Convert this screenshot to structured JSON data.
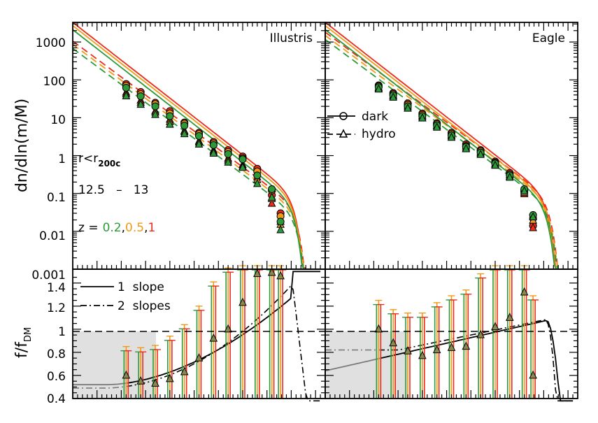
{
  "chart_data": [
    {
      "panel": "top-left",
      "type": "line",
      "label": "Illustris",
      "ylabel": "dn/dln(m/M)",
      "yscale": "log",
      "ylim": [
        0.001,
        3000
      ],
      "ytick_labels": [
        "1000",
        "100",
        "10",
        "1",
        "0.1",
        "0.01",
        "0.001"
      ],
      "xlim": [
        -5.0,
        0.2
      ],
      "annotations": {
        "radius": "r<r",
        "radius_sub": "200c",
        "mass_bin": "12.5   –   13",
        "z_prefix": "z =",
        "z1": "0.2",
        "z2": "0.5",
        "z3": "1"
      },
      "series": [
        {
          "z": "1",
          "color": "#ee2a1a",
          "points_dark": [
            [
              -3.9,
              78
            ],
            [
              -3.6,
              48
            ],
            [
              -3.3,
              25
            ],
            [
              -3.0,
              15
            ],
            [
              -2.7,
              7.5
            ],
            [
              -2.4,
              4.0
            ],
            [
              -2.1,
              2.3
            ],
            [
              -1.8,
              1.4
            ],
            [
              -1.5,
              0.95
            ],
            [
              -1.2,
              0.45
            ],
            [
              -0.9,
              0.09
            ],
            [
              -0.72,
              0.03
            ]
          ]
        },
        {
          "z": "0.5",
          "color": "#f19a16",
          "points_dark": [
            [
              -3.9,
              70
            ],
            [
              -3.6,
              42
            ],
            [
              -3.3,
              23
            ],
            [
              -3.0,
              13
            ],
            [
              -2.7,
              7.0
            ],
            [
              -2.4,
              3.7
            ],
            [
              -2.1,
              2.1
            ],
            [
              -1.8,
              1.25
            ],
            [
              -1.5,
              0.85
            ],
            [
              -1.2,
              0.38
            ],
            [
              -0.9,
              0.12
            ],
            [
              -0.72,
              0.025
            ]
          ]
        },
        {
          "z": "0.2",
          "color": "#2d9a3a",
          "points_dark": [
            [
              -3.9,
              62
            ],
            [
              -3.6,
              37
            ],
            [
              -3.3,
              20
            ],
            [
              -3.0,
              11
            ],
            [
              -2.7,
              6.2
            ],
            [
              -2.4,
              3.3
            ],
            [
              -2.1,
              1.9
            ],
            [
              -1.8,
              1.1
            ],
            [
              -1.5,
              0.8
            ],
            [
              -1.2,
              0.3
            ],
            [
              -0.9,
              0.13
            ],
            [
              -0.72,
              0.018
            ]
          ]
        }
      ]
    },
    {
      "panel": "top-right",
      "type": "line",
      "label": "Eagle",
      "legend": {
        "dark": "dark",
        "hydro": "hydro"
      },
      "series": [
        {
          "z": "1",
          "color": "#ee2a1a",
          "points_dark": [
            [
              -3.9,
              72
            ],
            [
              -3.6,
              45
            ],
            [
              -3.3,
              24
            ],
            [
              -3.0,
              13
            ],
            [
              -2.7,
              7.2
            ],
            [
              -2.4,
              4.0
            ],
            [
              -2.1,
              2.0
            ],
            [
              -1.8,
              1.4
            ],
            [
              -1.5,
              0.7
            ],
            [
              -1.2,
              0.35
            ],
            [
              -0.9,
              0.11
            ],
            [
              -0.72,
              0.014
            ]
          ]
        },
        {
          "z": "0.5",
          "color": "#f19a16",
          "points_dark": [
            [
              -3.9,
              68
            ],
            [
              -3.6,
              42
            ],
            [
              -3.3,
              22
            ],
            [
              -3.0,
              12
            ],
            [
              -2.7,
              6.8
            ],
            [
              -2.4,
              3.7
            ],
            [
              -2.1,
              1.8
            ],
            [
              -1.8,
              1.3
            ],
            [
              -1.5,
              0.65
            ],
            [
              -1.2,
              0.32
            ],
            [
              -0.9,
              0.12
            ],
            [
              -0.72,
              0.022
            ]
          ]
        },
        {
          "z": "0.2",
          "color": "#2d9a3a",
          "points_dark": [
            [
              -3.9,
              64
            ],
            [
              -3.6,
              39
            ],
            [
              -3.3,
              20
            ],
            [
              -3.0,
              11
            ],
            [
              -2.7,
              6.3
            ],
            [
              -2.4,
              3.4
            ],
            [
              -2.1,
              1.7
            ],
            [
              -1.8,
              1.2
            ],
            [
              -1.5,
              0.62
            ],
            [
              -1.2,
              0.3
            ],
            [
              -0.9,
              0.13
            ],
            [
              -0.72,
              0.027
            ]
          ]
        }
      ]
    },
    {
      "panel": "bottom-left",
      "type": "line",
      "ylabel": "f/f",
      "ylabel_sub": "DM",
      "ylim": [
        0.4,
        1.5
      ],
      "ytick_labels": [
        "1.4",
        "1.2",
        "1",
        "0.8",
        "0.6",
        "0.4"
      ],
      "legend": {
        "one_slope": "1  slope",
        "two_slopes": "2  slopes"
      },
      "ratio_points": [
        [
          -3.9,
          0.6
        ],
        [
          -3.6,
          0.55
        ],
        [
          -3.3,
          0.53
        ],
        [
          -3.0,
          0.57
        ],
        [
          -2.7,
          0.63
        ],
        [
          -2.4,
          0.75
        ],
        [
          -2.1,
          0.92
        ],
        [
          -1.8,
          1.0
        ],
        [
          -1.5,
          1.23
        ],
        [
          -1.2,
          1.48
        ],
        [
          -0.9,
          1.49
        ],
        [
          -0.72,
          1.46
        ]
      ]
    },
    {
      "panel": "bottom-right",
      "type": "line",
      "ratio_points": [
        [
          -3.9,
          1.0
        ],
        [
          -3.6,
          0.88
        ],
        [
          -3.3,
          0.81
        ],
        [
          -3.0,
          0.77
        ],
        [
          -2.7,
          0.82
        ],
        [
          -2.4,
          0.84
        ],
        [
          -2.1,
          0.85
        ],
        [
          -1.8,
          0.95
        ],
        [
          -1.5,
          1.02
        ],
        [
          -1.2,
          1.1
        ],
        [
          -0.9,
          1.32
        ],
        [
          -0.72,
          0.6
        ]
      ]
    }
  ]
}
